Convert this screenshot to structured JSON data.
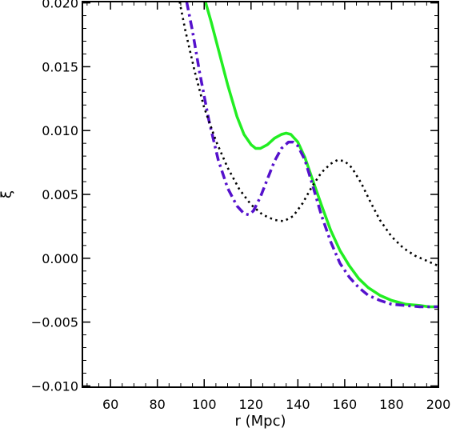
{
  "chart_data": {
    "type": "line",
    "title": "",
    "xlabel": "r (Mpc)",
    "ylabel": "ξ",
    "xlim": [
      48,
      200
    ],
    "ylim": [
      -0.0101,
      0.0201
    ],
    "x_ticks": [
      60,
      80,
      100,
      120,
      140,
      160,
      180,
      200
    ],
    "y_ticks": [
      0.02,
      0.015,
      0.01,
      0.005,
      0.0,
      -0.005,
      -0.01
    ],
    "x_tick_labels": [
      "60",
      "80",
      "100",
      "120",
      "140",
      "160",
      "180",
      "200"
    ],
    "y_tick_labels": [
      "0.020",
      "0.015",
      "0.010",
      "0.005",
      "0.000",
      "−0.005",
      "−0.010"
    ],
    "grid": false,
    "series": [
      {
        "style": "solid",
        "color": "#22ee22",
        "points": [
          [
            100.5,
            0.0201
          ],
          [
            103,
            0.0185
          ],
          [
            106,
            0.0164
          ],
          [
            110,
            0.0136
          ],
          [
            114,
            0.0111
          ],
          [
            117,
            0.0097
          ],
          [
            120,
            0.0089
          ],
          [
            122,
            0.0086
          ],
          [
            124,
            0.0086
          ],
          [
            127,
            0.0089
          ],
          [
            130,
            0.0094
          ],
          [
            133,
            0.0097
          ],
          [
            135,
            0.0098
          ],
          [
            137,
            0.0097
          ],
          [
            140,
            0.0091
          ],
          [
            143,
            0.0079
          ],
          [
            146,
            0.0063
          ],
          [
            150,
            0.0042
          ],
          [
            154,
            0.0022
          ],
          [
            158,
            0.0006
          ],
          [
            162,
            -0.0006
          ],
          [
            166,
            -0.0016
          ],
          [
            170,
            -0.0023
          ],
          [
            175,
            -0.0029
          ],
          [
            180,
            -0.0033
          ],
          [
            186,
            -0.0036
          ],
          [
            192,
            -0.0037
          ],
          [
            196,
            -0.0038
          ],
          [
            200,
            -0.0038
          ]
        ]
      },
      {
        "style": "dashdot",
        "color": "#5511cc",
        "points": [
          [
            92.5,
            0.0201
          ],
          [
            95,
            0.0178
          ],
          [
            98,
            0.0146
          ],
          [
            102,
            0.0108
          ],
          [
            106,
            0.0077
          ],
          [
            110,
            0.0055
          ],
          [
            114,
            0.0041
          ],
          [
            117,
            0.0035
          ],
          [
            119,
            0.0034
          ],
          [
            121,
            0.0037
          ],
          [
            124,
            0.0048
          ],
          [
            127,
            0.0062
          ],
          [
            130,
            0.0076
          ],
          [
            133,
            0.0086
          ],
          [
            136,
            0.0091
          ],
          [
            138,
            0.0091
          ],
          [
            140,
            0.0088
          ],
          [
            143,
            0.0077
          ],
          [
            146,
            0.0059
          ],
          [
            150,
            0.0034
          ],
          [
            154,
            0.0013
          ],
          [
            158,
            -0.0004
          ],
          [
            162,
            -0.0015
          ],
          [
            166,
            -0.0023
          ],
          [
            170,
            -0.0029
          ],
          [
            175,
            -0.0033
          ],
          [
            180,
            -0.0036
          ],
          [
            186,
            -0.0037
          ],
          [
            192,
            -0.0038
          ],
          [
            200,
            -0.0038
          ]
        ]
      },
      {
        "style": "dotted",
        "color": "#000000",
        "points": [
          [
            89.5,
            0.0201
          ],
          [
            92,
            0.0178
          ],
          [
            96,
            0.0146
          ],
          [
            100,
            0.0118
          ],
          [
            105,
            0.0092
          ],
          [
            110,
            0.0071
          ],
          [
            115,
            0.0054
          ],
          [
            120,
            0.0042
          ],
          [
            125,
            0.0034
          ],
          [
            130,
            0.003
          ],
          [
            134,
            0.0029
          ],
          [
            138,
            0.0033
          ],
          [
            142,
            0.0043
          ],
          [
            146,
            0.0056
          ],
          [
            150,
            0.0067
          ],
          [
            154,
            0.0074
          ],
          [
            157,
            0.0077
          ],
          [
            160,
            0.0076
          ],
          [
            163,
            0.0071
          ],
          [
            167,
            0.0059
          ],
          [
            171,
            0.0044
          ],
          [
            175,
            0.003
          ],
          [
            180,
            0.0017
          ],
          [
            185,
            0.0008
          ],
          [
            190,
            0.0002
          ],
          [
            195,
            -0.0002
          ],
          [
            200,
            -0.0006
          ]
        ]
      }
    ]
  }
}
